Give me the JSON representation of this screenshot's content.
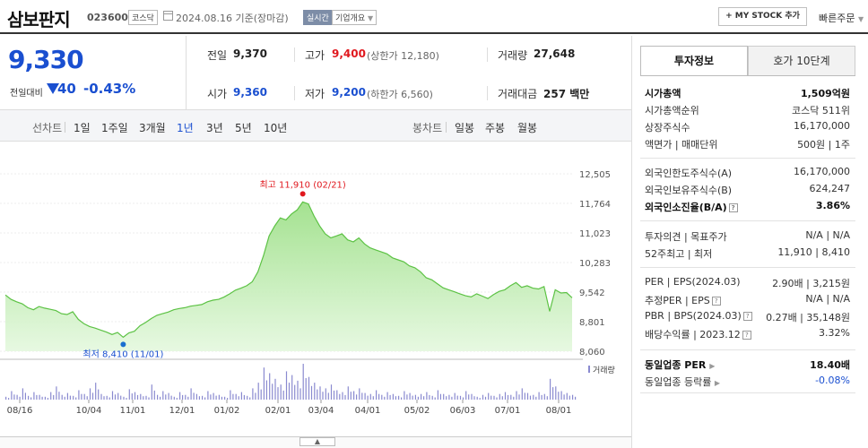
{
  "header": {
    "title": "삼보판지",
    "code": "023600",
    "market": "코스닥",
    "base_date": "2024.08.16  기준(장마감)",
    "realtime": "실시간",
    "corp_info": "기업개요",
    "mystock": "+ MY STOCK 추가",
    "quick_order": "빠른주문"
  },
  "quote": {
    "price": "9,330",
    "diff_label": "전일대비",
    "diff": "40",
    "pct": "-0.43%"
  },
  "metrics": {
    "prev_label": "전일",
    "prev": "9,370",
    "high_label": "고가",
    "high": "9,400",
    "upper_limit": "(상한가 12,180)",
    "volume_label": "거래량",
    "volume": "27,648",
    "open_label": "시가",
    "open": "9,360",
    "low_label": "저가",
    "low": "9,200",
    "lower_limit": "(하한가 6,560)",
    "amount_label": "거래대금",
    "amount": "257 백만"
  },
  "toolbar": {
    "line_label": "선차트",
    "periods": [
      "1일",
      "1주일",
      "3개월",
      "1년",
      "3년",
      "5년",
      "10년"
    ],
    "selected_period": "1년",
    "candle_label": "봉차트",
    "candles": [
      "일봉",
      "주봉",
      "월봉"
    ]
  },
  "chart_data": {
    "type": "area",
    "x_ticks": [
      "08/16",
      "10/04",
      "11/01",
      "12/01",
      "01/02",
      "02/01",
      "03/04",
      "04/01",
      "05/02",
      "06/03",
      "07/01",
      "08/01"
    ],
    "y_ticks": [
      "12,505",
      "11,764",
      "11,023",
      "10,283",
      "9,542",
      "8,801",
      "8,060"
    ],
    "ylim": [
      8060,
      12505
    ],
    "max_label": "최고 11,910 (02/21)",
    "min_label": "최저 8,410 (11/01)",
    "volume_label": "거래량",
    "series": [
      {
        "values": [
          9470,
          9360,
          9300,
          9250,
          9150,
          9100,
          9180,
          9140,
          9110,
          9080,
          9000,
          8980,
          9050,
          8860,
          8750,
          8680,
          8640,
          8590,
          8540,
          8480,
          8530,
          8410,
          8520,
          8560,
          8700,
          8780,
          8880,
          8960,
          9000,
          9040,
          9100,
          9130,
          9150,
          9190,
          9210,
          9230,
          9300,
          9340,
          9360,
          9420,
          9500,
          9590,
          9640,
          9700,
          9800,
          10050,
          10450,
          10950,
          11200,
          11400,
          11350,
          11500,
          11600,
          11800,
          11750,
          11450,
          11200,
          11000,
          10900,
          10950,
          11000,
          10850,
          10800,
          10900,
          10750,
          10650,
          10600,
          10550,
          10500,
          10400,
          10350,
          10300,
          10200,
          10150,
          10050,
          9900,
          9850,
          9750,
          9650,
          9600,
          9550,
          9500,
          9450,
          9420,
          9500,
          9440,
          9380,
          9480,
          9560,
          9600,
          9700,
          9780,
          9660,
          9700,
          9640,
          9620,
          9680,
          9060,
          9600,
          9520,
          9530,
          9400
        ]
      }
    ],
    "volume_values": [
      3,
      9,
      5,
      12,
      4,
      8,
      5,
      3,
      8,
      14,
      5,
      7,
      4,
      10,
      6,
      12,
      18,
      6,
      4,
      9,
      7,
      3,
      11,
      8,
      6,
      4,
      16,
      5,
      9,
      7,
      3,
      8,
      5,
      12,
      6,
      4,
      9,
      7,
      5,
      3,
      10,
      6,
      8,
      4,
      12,
      18,
      34,
      28,
      22,
      16,
      30,
      26,
      20,
      38,
      24,
      18,
      14,
      12,
      16,
      10,
      8,
      14,
      9,
      12,
      7,
      6,
      10,
      5,
      8,
      6,
      4,
      9,
      7,
      5,
      6,
      8,
      4,
      10,
      6,
      5,
      7,
      4,
      9,
      6,
      3,
      5,
      7,
      4,
      6,
      8,
      5,
      9,
      12,
      7,
      5,
      8,
      6,
      22,
      14,
      9,
      7,
      5
    ]
  },
  "invest": {
    "tab_invest": "투자정보",
    "tab_ask": "호가 10단계",
    "rows": [
      {
        "label": "시가총액",
        "value": "1,509억원"
      },
      {
        "label": "시가총액순위",
        "value": "코스닥 511위"
      },
      {
        "label": "상장주식수",
        "value": "16,170,000"
      },
      {
        "label": "액면가 | 매매단위",
        "value": "500원  |  1주"
      },
      {
        "label": "외국인한도주식수(A)",
        "value": "16,170,000"
      },
      {
        "label": "외국인보유주식수(B)",
        "value": "624,247"
      },
      {
        "label": "외국인소진율(B/A)",
        "value": "3.86%"
      },
      {
        "label": "투자의견 | 목표주가",
        "value": "N/A  |  N/A"
      },
      {
        "label": "52주최고 | 최저",
        "value": "11,910  |  8,410"
      },
      {
        "label": "PER | EPS(2024.03)",
        "value": "2.90배  |  3,215원"
      },
      {
        "label": "추정PER | EPS",
        "value": "N/A  |  N/A"
      },
      {
        "label": "PBR | BPS(2024.03)",
        "value": "0.27배  |  35,148원"
      },
      {
        "label": "배당수익률 | 2023.12",
        "value": "3.32%"
      },
      {
        "label": "동일업종 PER",
        "value": "18.40배"
      },
      {
        "label": "동일업종 등락률",
        "value": "-0.08%"
      }
    ]
  }
}
